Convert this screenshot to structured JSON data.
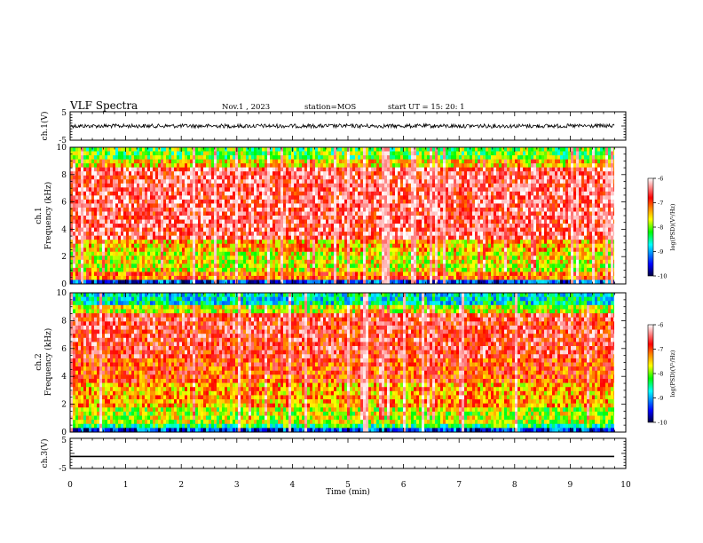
{
  "header": {
    "title": "VLF Spectra",
    "date": "Nov.1 , 2023",
    "station": "station=MOS",
    "start": "start UT =  15: 20: 1"
  },
  "colors": {
    "spectrum": [
      "#000080",
      "#0000ff",
      "#00ffff",
      "#00ff00",
      "#ffff00",
      "#ff8000",
      "#ff0000",
      "#ffffff"
    ],
    "trace": "#000000"
  },
  "chart_data": [
    {
      "type": "line",
      "name": "ch1-waveform",
      "ylabel": "ch.1(V)",
      "ylim": [
        -5,
        5
      ],
      "yticks": [
        "5",
        "-5"
      ],
      "level": 0
    },
    {
      "type": "heatmap",
      "name": "ch1-spectrogram",
      "ylabel": "ch.1 Frequency (kHz)",
      "ylim": [
        0,
        10
      ],
      "yticks": [
        "0",
        "2",
        "4",
        "6",
        "8",
        "10"
      ],
      "colorbar": {
        "label": "log(PSD)(V²/Hz)",
        "range": [
          -10,
          -6
        ],
        "ticks": [
          "-6",
          "-7",
          "-8",
          "-9",
          "-10"
        ]
      }
    },
    {
      "type": "heatmap",
      "name": "ch2-spectrogram",
      "ylabel": "ch.2 Frequency (kHz)",
      "ylim": [
        0,
        10
      ],
      "yticks": [
        "0",
        "2",
        "4",
        "6",
        "8",
        "10"
      ],
      "colorbar": {
        "label": "log(PSD)(V²/Hz)",
        "range": [
          -10,
          -6
        ],
        "ticks": [
          "-6",
          "-7",
          "-8",
          "-9",
          "-10"
        ]
      }
    },
    {
      "type": "line",
      "name": "ch3-waveform",
      "ylabel": "ch.3(V)",
      "ylim": [
        -5,
        5
      ],
      "yticks": [
        "5",
        "-5"
      ],
      "level": -1
    }
  ],
  "xaxis": {
    "label": "Time  (min)",
    "xlim": [
      0,
      10
    ],
    "ticks": [
      "0",
      "1",
      "2",
      "3",
      "4",
      "5",
      "6",
      "7",
      "8",
      "9",
      "10"
    ]
  }
}
